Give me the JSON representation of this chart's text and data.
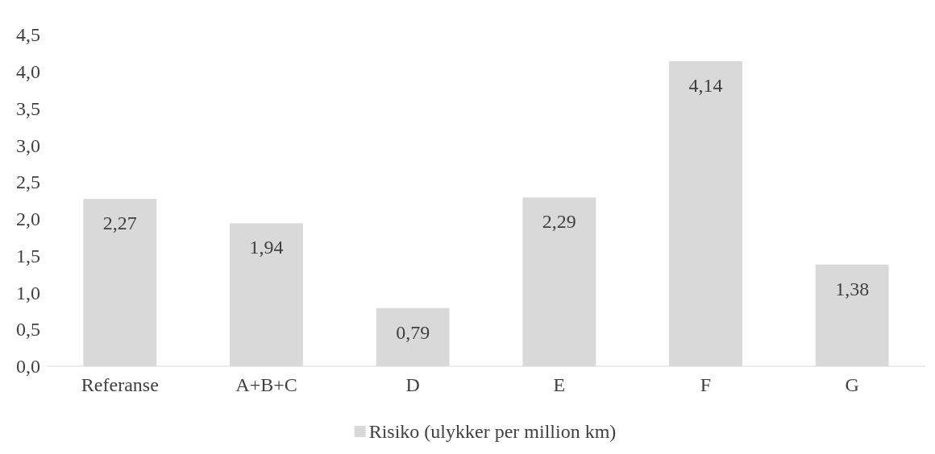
{
  "chart_data": {
    "type": "bar",
    "categories": [
      "Referanse",
      "A+B+C",
      "D",
      "E",
      "F",
      "G"
    ],
    "series": [
      {
        "name": "Risiko (ulykker per million km)",
        "color": "#d9d9d9",
        "values": [
          2.27,
          1.94,
          0.79,
          2.29,
          4.14,
          1.38
        ],
        "value_labels": [
          "2,27",
          "1,94",
          "0,79",
          "2,29",
          "4,14",
          "1,38"
        ]
      }
    ],
    "ylim": [
      0,
      4.5
    ],
    "yticks": [
      {
        "value": 0,
        "label": "0,0"
      },
      {
        "value": 0.5,
        "label": "0,5"
      },
      {
        "value": 1,
        "label": "1,0"
      },
      {
        "value": 1.5,
        "label": "1,5"
      },
      {
        "value": 2,
        "label": "2,0"
      },
      {
        "value": 2.5,
        "label": "2,5"
      },
      {
        "value": 3,
        "label": "3,0"
      },
      {
        "value": 3.5,
        "label": "3,5"
      },
      {
        "value": 4,
        "label": "4,0"
      },
      {
        "value": 4.5,
        "label": "4,5"
      }
    ],
    "grid": false,
    "legend": "bottom"
  }
}
